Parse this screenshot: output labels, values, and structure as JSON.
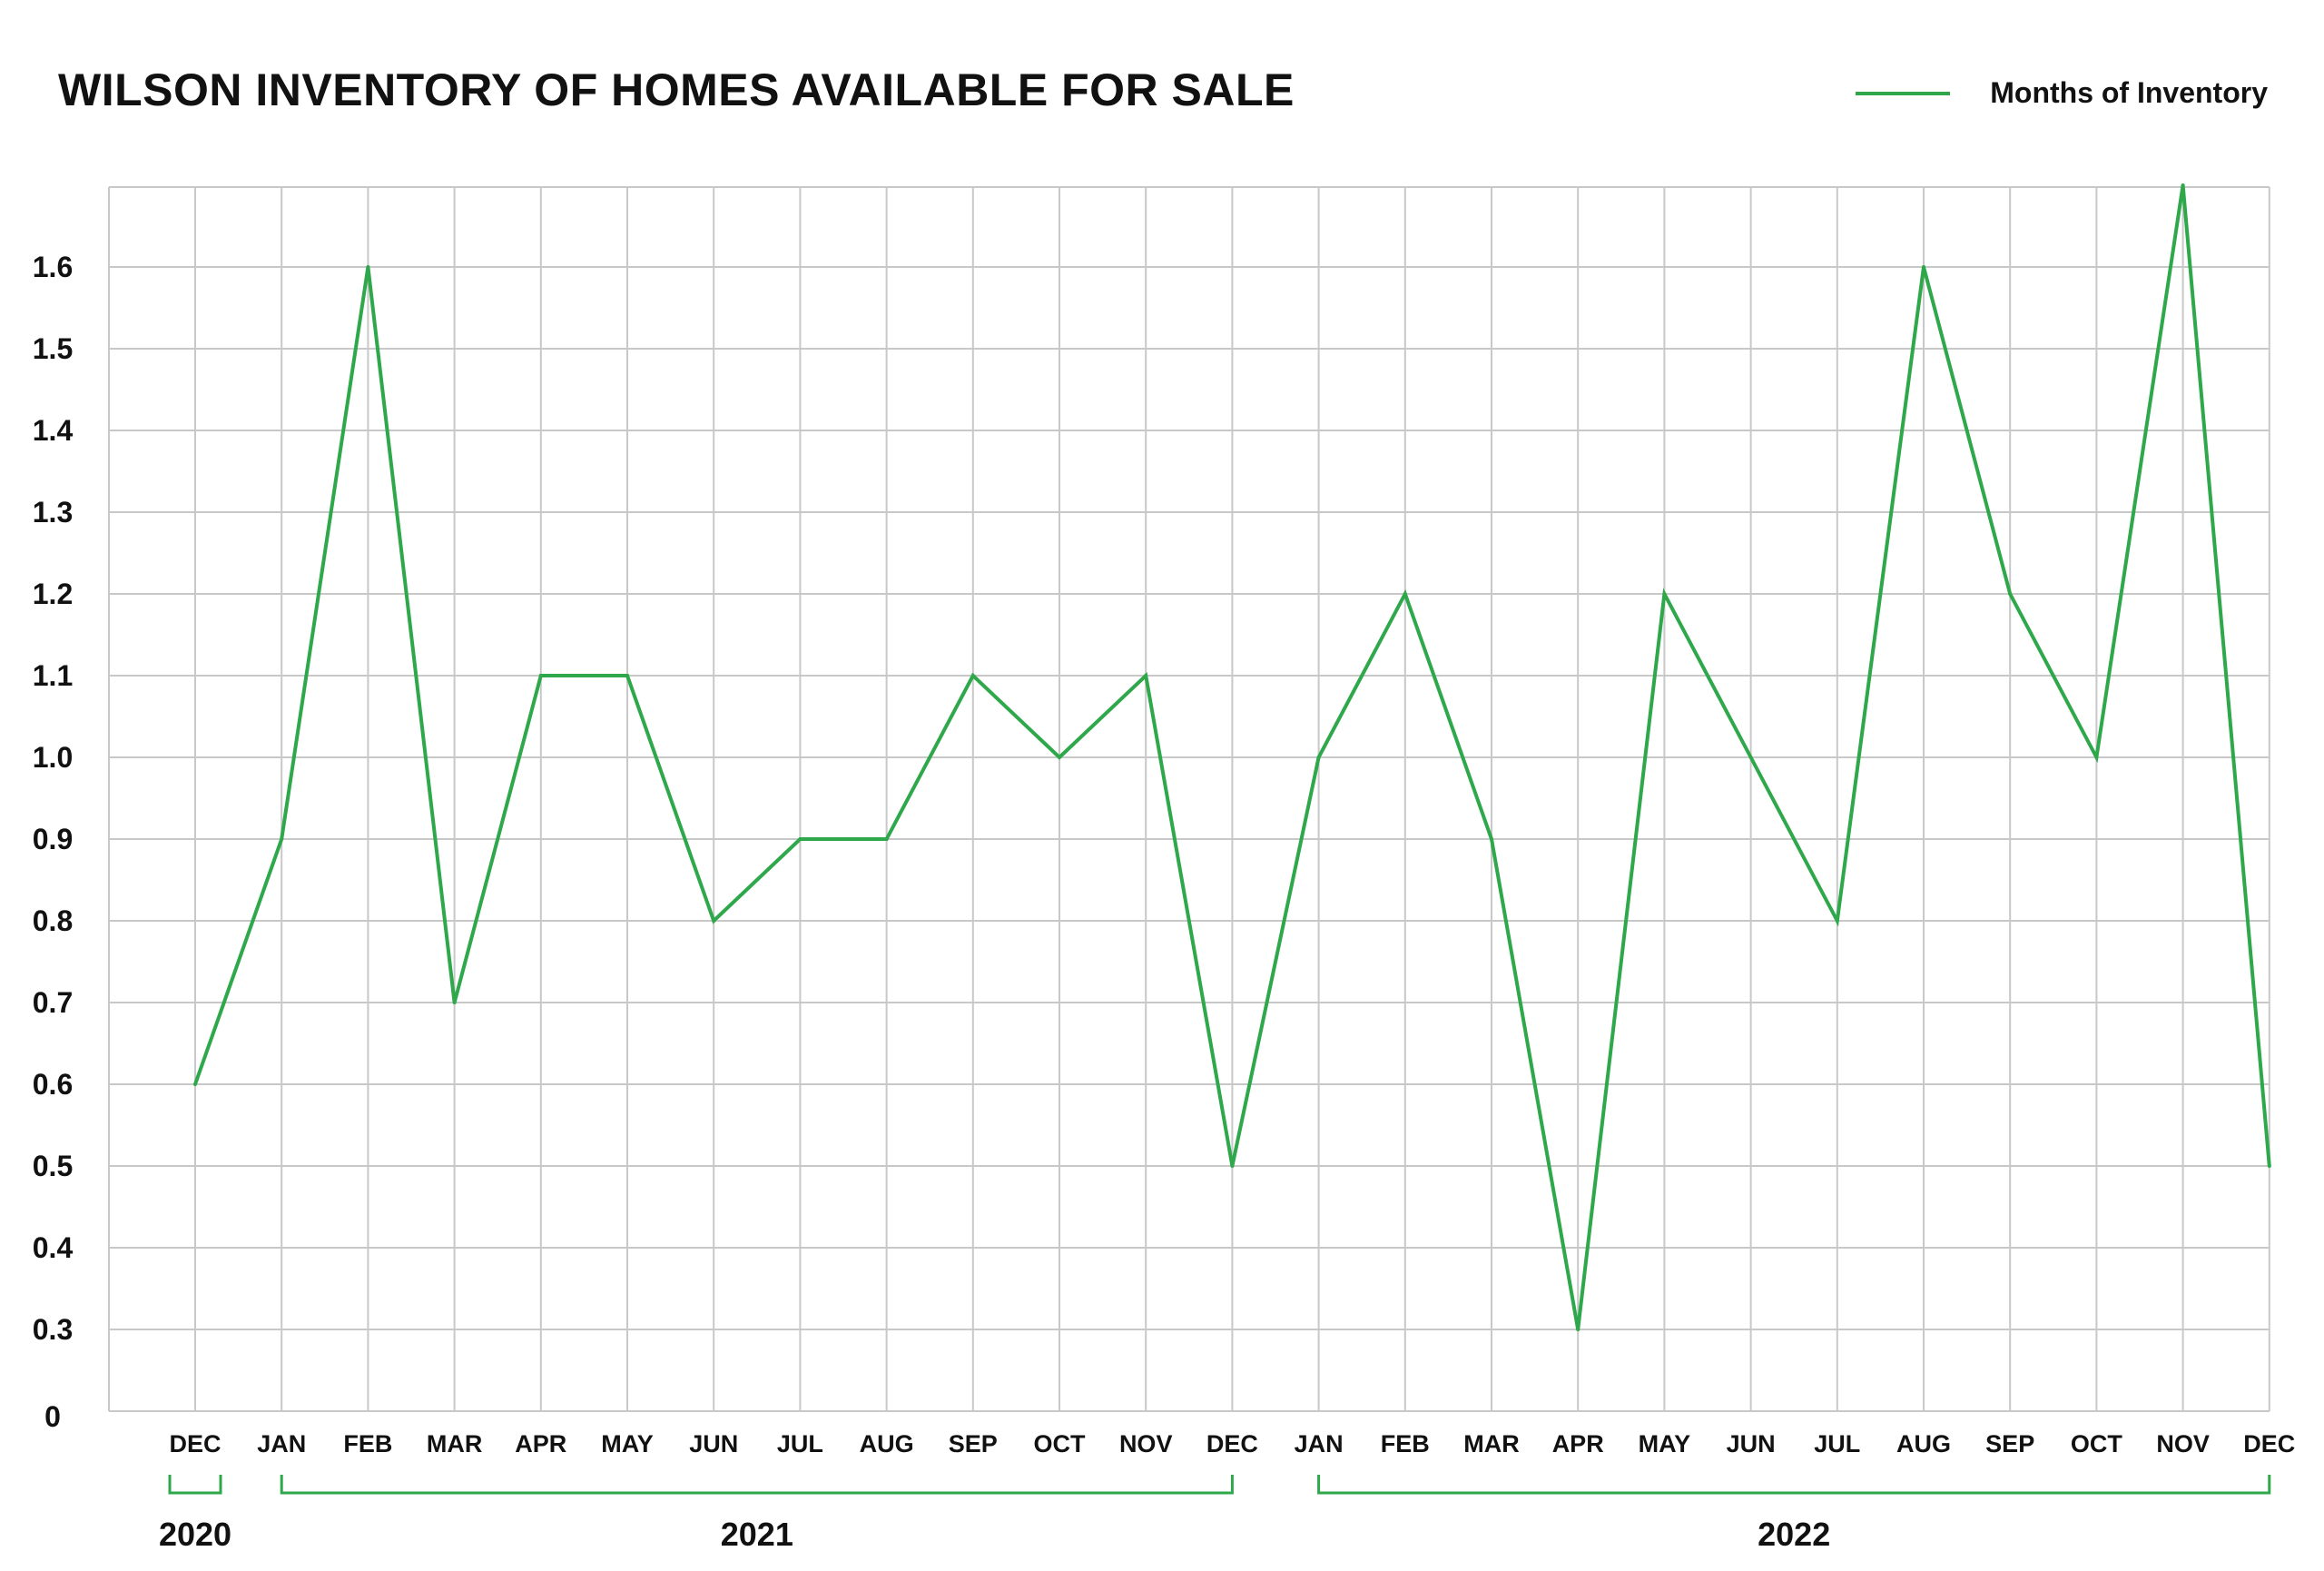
{
  "chart_data": {
    "type": "line",
    "title": "WILSON INVENTORY OF HOMES AVAILABLE FOR SALE",
    "xlabel": "",
    "ylabel": "",
    "categories": [
      "DEC",
      "JAN",
      "FEB",
      "MAR",
      "APR",
      "MAY",
      "JUN",
      "JUL",
      "AUG",
      "SEP",
      "OCT",
      "NOV",
      "DEC",
      "JAN",
      "FEB",
      "MAR",
      "APR",
      "MAY",
      "JUN",
      "JUL",
      "AUG",
      "SEP",
      "OCT",
      "NOV",
      "DEC"
    ],
    "series": [
      {
        "name": "Months of Inventory",
        "color": "#2ea84b",
        "values": [
          0.6,
          0.9,
          1.6,
          0.7,
          1.1,
          1.1,
          0.8,
          0.9,
          0.9,
          1.1,
          1.0,
          1.1,
          0.5,
          1.0,
          1.2,
          0.9,
          0.3,
          1.2,
          1.0,
          0.8,
          1.6,
          1.2,
          1.0,
          1.7,
          0.5
        ]
      }
    ],
    "y_ticks": [
      "0",
      "0.3",
      "0.4",
      "0.5",
      "0.6",
      "0.7",
      "0.8",
      "0.9",
      "1.0",
      "1.1",
      "1.2",
      "1.3",
      "1.4",
      "1.5",
      "1.6"
    ],
    "year_groups": [
      {
        "label": "2020",
        "start": 0,
        "end": 0
      },
      {
        "label": "2021",
        "start": 1,
        "end": 12
      },
      {
        "label": "2022",
        "start": 13,
        "end": 24
      }
    ],
    "grid": true,
    "legend_position": "top-right",
    "grid_color": "#c8c8c8",
    "bracket_color": "#2ea84b"
  }
}
